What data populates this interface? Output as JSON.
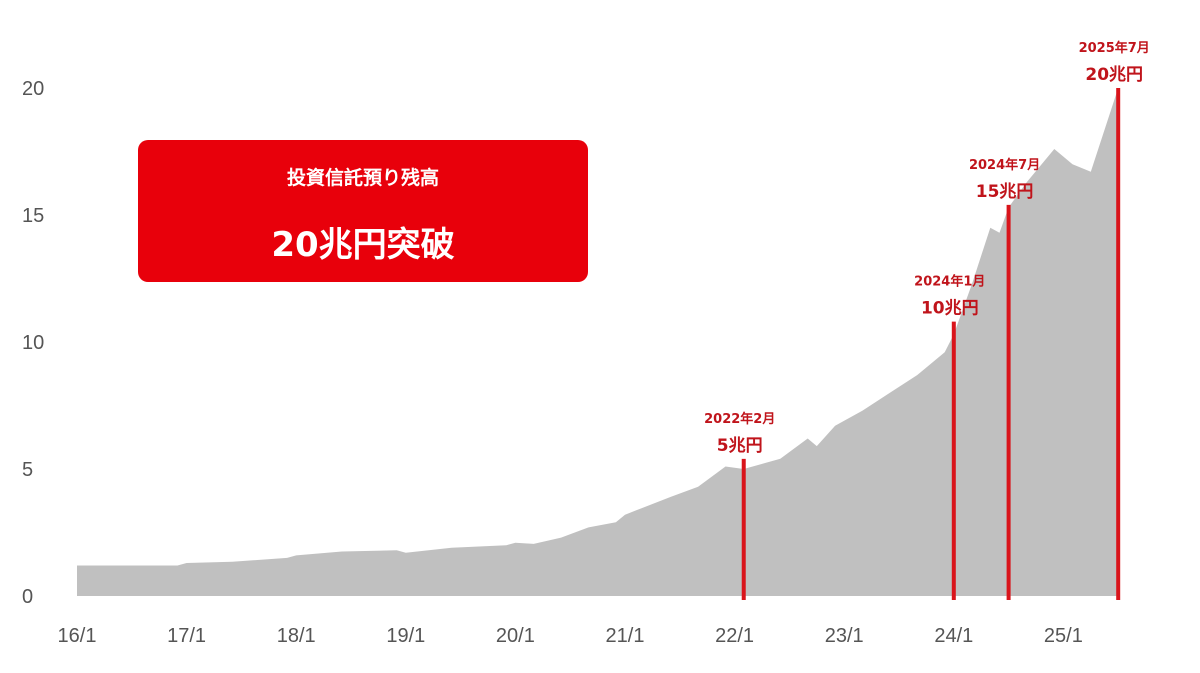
{
  "chart_data": {
    "type": "area",
    "title": "",
    "xlabel": "",
    "ylabel": "",
    "unit": "兆円",
    "ylim": [
      0,
      20
    ],
    "yticks": [
      0,
      5,
      10,
      15,
      20
    ],
    "xticks": [
      "16/1",
      "17/1",
      "18/1",
      "19/1",
      "20/1",
      "21/1",
      "22/1",
      "23/1",
      "24/1",
      "25/1"
    ],
    "grid": false,
    "colors": {
      "area": "#c0c0c0",
      "marker": "#d9141b",
      "box": "#e8000b"
    },
    "series": [
      {
        "x": [
          "2016-01",
          "2016-06",
          "2016-12",
          "2017-01",
          "2017-06",
          "2017-12",
          "2018-01",
          "2018-06",
          "2018-12",
          "2019-01",
          "2019-06",
          "2019-12",
          "2020-01",
          "2020-03",
          "2020-06",
          "2020-09",
          "2020-12",
          "2021-01",
          "2021-06",
          "2021-09",
          "2021-12",
          "2022-02",
          "2022-06",
          "2022-09",
          "2022-10",
          "2022-12",
          "2023-03",
          "2023-06",
          "2023-09",
          "2023-12",
          "2024-01",
          "2024-03",
          "2024-05",
          "2024-06",
          "2024-07",
          "2024-09",
          "2024-12",
          "2025-02",
          "2025-04",
          "2025-07"
        ],
        "y": [
          1.2,
          1.2,
          1.2,
          1.3,
          1.35,
          1.5,
          1.6,
          1.75,
          1.8,
          1.7,
          1.9,
          2.0,
          2.1,
          2.05,
          2.3,
          2.7,
          2.9,
          3.2,
          3.9,
          4.3,
          5.1,
          5.0,
          5.4,
          6.2,
          5.9,
          6.7,
          7.3,
          8.0,
          8.7,
          9.6,
          10.3,
          12.3,
          14.5,
          14.3,
          15.3,
          16.3,
          17.6,
          17.0,
          16.7,
          20.0
        ]
      }
    ],
    "markers": [
      {
        "date": "2022-02",
        "label_date": "2022年2月",
        "label_value": "5兆円",
        "value": 5.4
      },
      {
        "date": "2024-01",
        "label_date": "2024年1月",
        "label_value": "10兆円",
        "value": 10.8
      },
      {
        "date": "2024-07",
        "label_date": "2024年7月",
        "label_value": "15兆円",
        "value": 15.4
      },
      {
        "date": "2025-07",
        "label_date": "2025年7月",
        "label_value": "20兆円",
        "value": 20.0
      }
    ],
    "annotation_box": {
      "line1": "投資信託預り残高",
      "line2": "20兆円突破"
    }
  }
}
